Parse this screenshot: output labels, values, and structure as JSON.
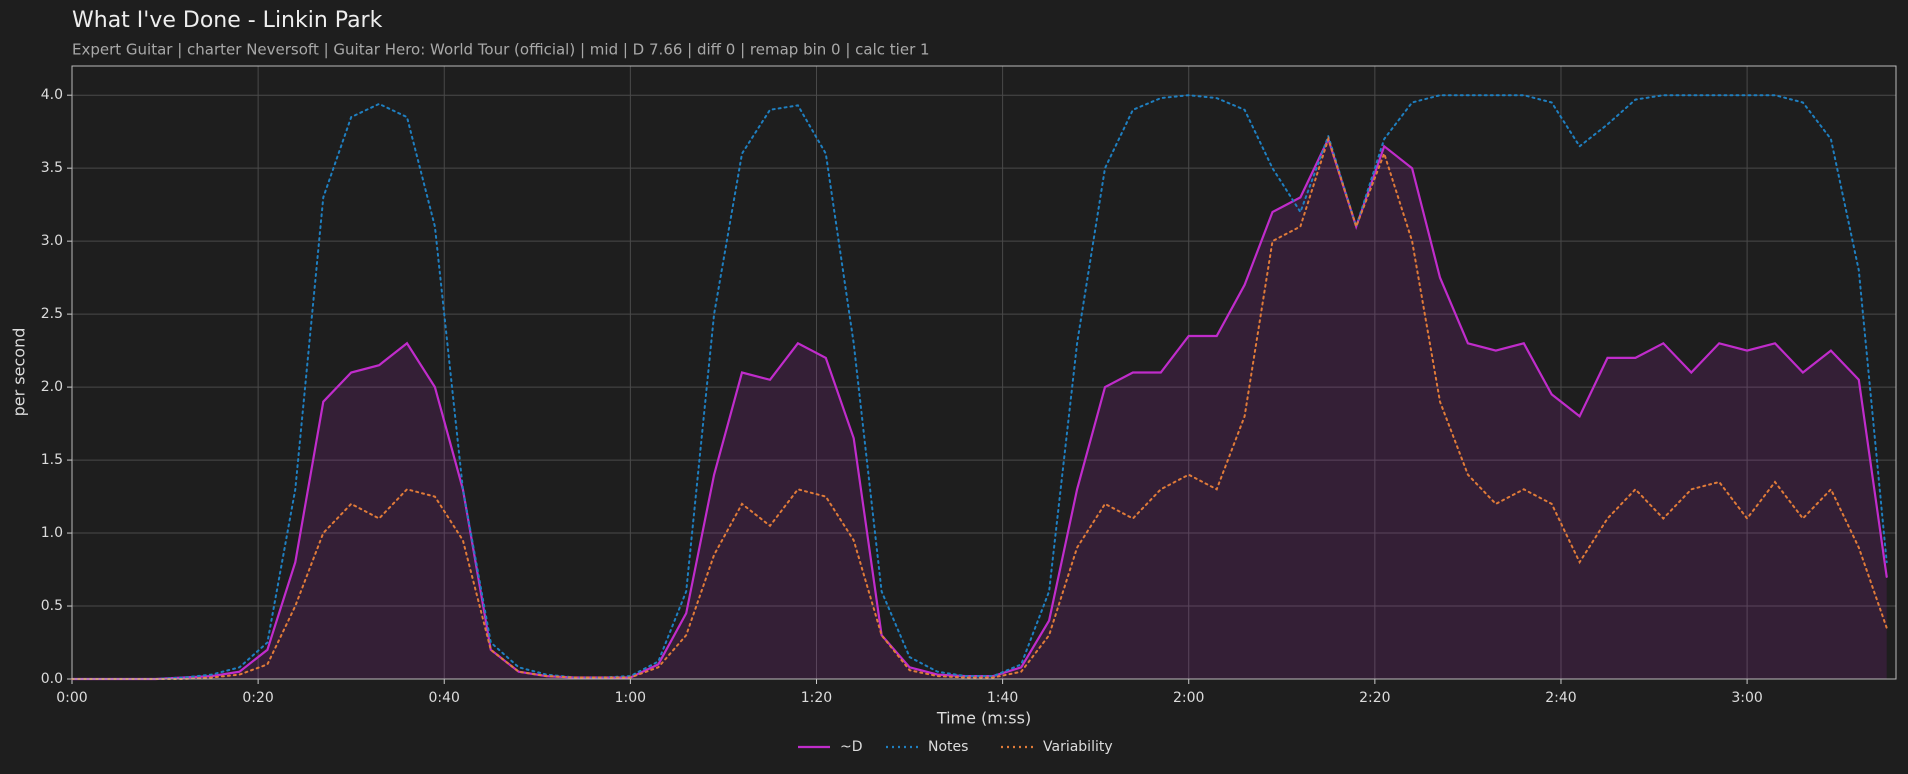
{
  "chart_data": {
    "type": "line",
    "title": "What I've Done - Linkin Park",
    "subtitle": "Expert Guitar  |  charter Neversoft  |  Guitar Hero: World Tour (official)  |  mid  |  D 7.66  |  diff 0  |  remap bin 0  |  calc tier 1",
    "xlabel": "Time (m:ss)",
    "ylabel": "per second",
    "x": [
      0,
      3,
      6,
      9,
      12,
      15,
      18,
      21,
      24,
      27,
      30,
      33,
      36,
      39,
      42,
      45,
      48,
      51,
      54,
      57,
      60,
      63,
      66,
      69,
      72,
      75,
      78,
      81,
      84,
      87,
      90,
      93,
      96,
      99,
      102,
      105,
      108,
      111,
      114,
      117,
      120,
      123,
      126,
      129,
      132,
      135,
      138,
      141,
      144,
      147,
      150,
      153,
      156,
      159,
      162,
      165,
      168,
      171,
      174,
      177,
      180,
      183,
      186,
      189,
      192,
      195
    ],
    "series": [
      {
        "name": "~D",
        "color": "#c02ccb",
        "style": "solid",
        "fill": true,
        "values": [
          0,
          0,
          0,
          0,
          0.01,
          0.02,
          0.05,
          0.2,
          0.8,
          1.9,
          2.1,
          2.15,
          2.3,
          2.0,
          1.3,
          0.2,
          0.05,
          0.02,
          0.01,
          0.01,
          0.01,
          0.1,
          0.45,
          1.4,
          2.1,
          2.05,
          2.3,
          2.2,
          1.65,
          0.3,
          0.08,
          0.03,
          0.02,
          0.02,
          0.08,
          0.4,
          1.3,
          2.0,
          2.1,
          2.1,
          2.35,
          2.35,
          2.7,
          3.2,
          3.3,
          3.7,
          3.1,
          3.65,
          3.5,
          2.75,
          2.3,
          2.25,
          2.3,
          1.95,
          1.8,
          2.2,
          2.2,
          2.3,
          2.1,
          2.3,
          2.25,
          2.3,
          2.1,
          2.25,
          2.05,
          0.7
        ]
      },
      {
        "name": "Notes",
        "color": "#1f7fc0",
        "style": "dotted",
        "fill": false,
        "values": [
          0,
          0,
          0,
          0,
          0.01,
          0.03,
          0.08,
          0.25,
          1.3,
          3.3,
          3.85,
          3.94,
          3.85,
          3.1,
          1.3,
          0.25,
          0.08,
          0.03,
          0.01,
          0.01,
          0.02,
          0.12,
          0.6,
          2.5,
          3.6,
          3.9,
          3.93,
          3.6,
          2.3,
          0.6,
          0.15,
          0.05,
          0.02,
          0.02,
          0.1,
          0.6,
          2.3,
          3.5,
          3.9,
          3.98,
          4.0,
          3.98,
          3.9,
          3.5,
          3.2,
          3.72,
          3.1,
          3.7,
          3.95,
          4.0,
          4.0,
          4.0,
          4.0,
          3.95,
          3.65,
          3.8,
          3.97,
          4.0,
          4.0,
          4.0,
          4.0,
          4.0,
          3.95,
          3.7,
          2.8,
          0.8
        ]
      },
      {
        "name": "Variability",
        "color": "#e07b39",
        "style": "dotted",
        "fill": false,
        "values": [
          0,
          0,
          0,
          0,
          0,
          0.01,
          0.03,
          0.1,
          0.5,
          1.0,
          1.2,
          1.1,
          1.3,
          1.25,
          0.95,
          0.2,
          0.05,
          0.02,
          0.01,
          0.01,
          0.01,
          0.08,
          0.3,
          0.85,
          1.2,
          1.05,
          1.3,
          1.25,
          0.95,
          0.3,
          0.06,
          0.02,
          0.01,
          0.01,
          0.05,
          0.3,
          0.9,
          1.2,
          1.1,
          1.3,
          1.4,
          1.3,
          1.8,
          3.0,
          3.1,
          3.7,
          3.1,
          3.6,
          3.0,
          1.9,
          1.4,
          1.2,
          1.3,
          1.2,
          0.8,
          1.1,
          1.3,
          1.1,
          1.3,
          1.35,
          1.1,
          1.35,
          1.1,
          1.3,
          0.9,
          0.35
        ]
      }
    ],
    "xlim": [
      0,
      196
    ],
    "ylim": [
      0,
      4.2
    ],
    "xticks": [
      {
        "value": 0,
        "label": "0:00"
      },
      {
        "value": 20,
        "label": "0:20"
      },
      {
        "value": 40,
        "label": "0:40"
      },
      {
        "value": 60,
        "label": "1:00"
      },
      {
        "value": 80,
        "label": "1:20"
      },
      {
        "value": 100,
        "label": "1:40"
      },
      {
        "value": 120,
        "label": "2:00"
      },
      {
        "value": 140,
        "label": "2:20"
      },
      {
        "value": 160,
        "label": "2:40"
      },
      {
        "value": 180,
        "label": "3:00"
      }
    ],
    "yticks": [
      {
        "value": 0,
        "label": "0.0"
      },
      0.5,
      {
        "value": 1,
        "label": "1.0"
      },
      1.5,
      {
        "value": 2,
        "label": "2.0"
      },
      2.5,
      {
        "value": 3,
        "label": "3.0"
      },
      3.5,
      {
        "value": 4,
        "label": "4.0"
      }
    ],
    "grid": true,
    "legend": "lower center"
  }
}
